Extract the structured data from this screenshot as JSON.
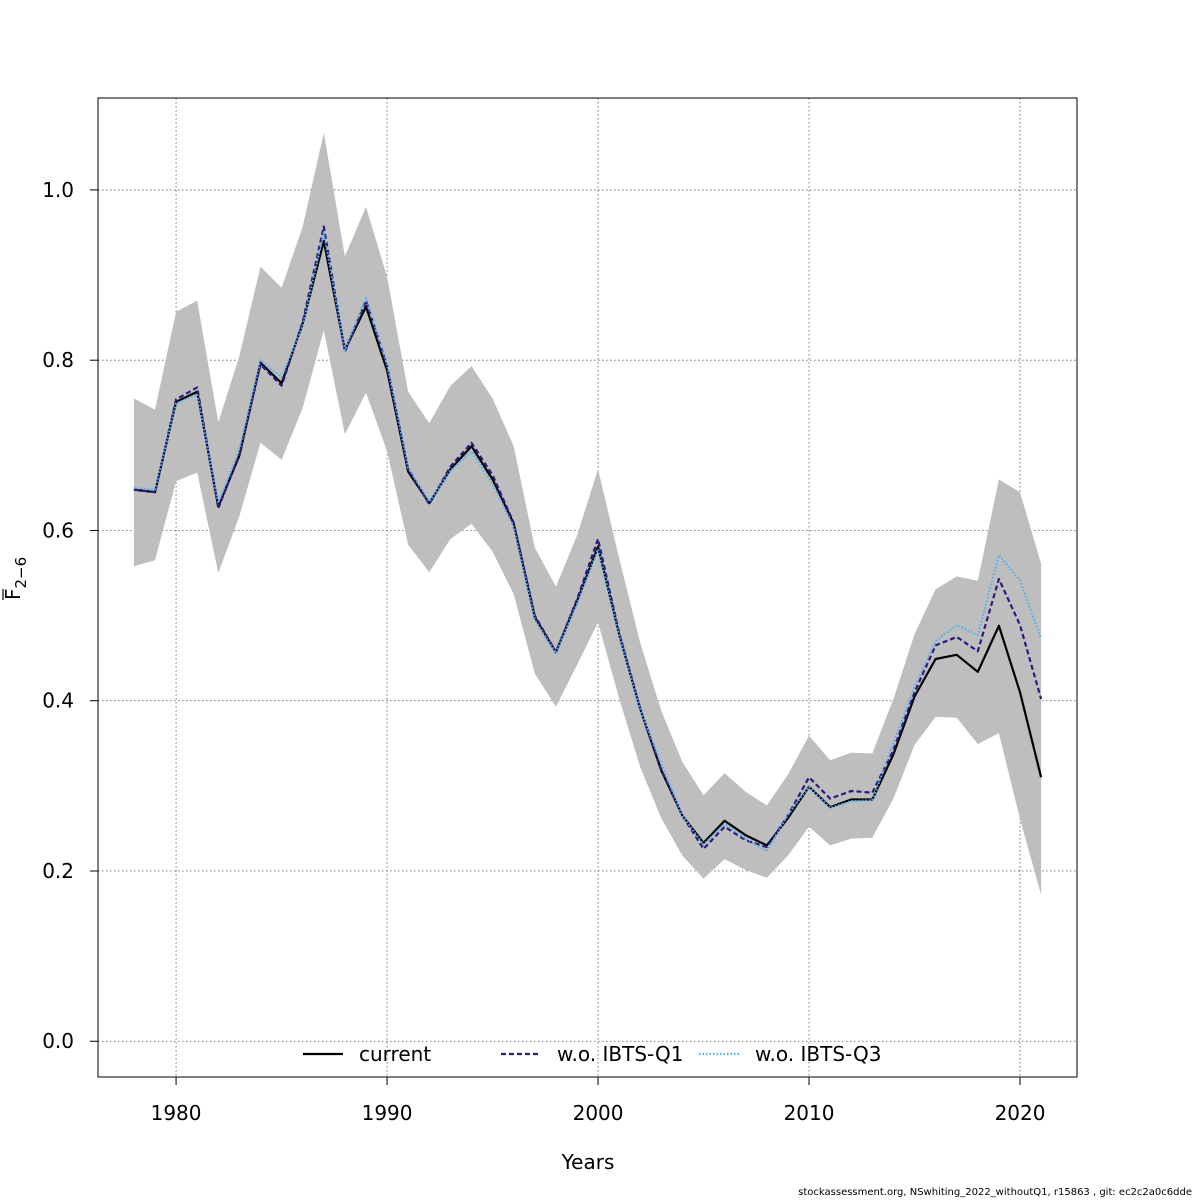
{
  "footer_text": "stockassessment.org, NSwhiting_2022_withoutQ1, r15863 , git: ec2c2a0c6dde",
  "chart_data": {
    "type": "line",
    "xlabel": "Years",
    "ylabel_main": "F",
    "ylabel_sub": "2−6",
    "xlim": [
      1976.3,
      2022.7
    ],
    "ylim": [
      -0.042,
      1.108
    ],
    "x_ticks": [
      1980,
      1990,
      2000,
      2010,
      2020
    ],
    "y_ticks": [
      0.0,
      0.2,
      0.4,
      0.6,
      0.8,
      1.0
    ],
    "y_tick_labels": [
      "0.0",
      "0.2",
      "0.4",
      "0.6",
      "0.8",
      "1.0"
    ],
    "grid": true,
    "legend_position": "bottom",
    "band_color": "#bebebe",
    "x": [
      1978,
      1979,
      1980,
      1981,
      1982,
      1983,
      1984,
      1985,
      1986,
      1987,
      1988,
      1989,
      1990,
      1991,
      1992,
      1993,
      1994,
      1995,
      1996,
      1997,
      1998,
      1999,
      2000,
      2001,
      2002,
      2003,
      2004,
      2005,
      2006,
      2007,
      2008,
      2009,
      2010,
      2011,
      2012,
      2013,
      2014,
      2015,
      2016,
      2017,
      2018,
      2019,
      2020,
      2021
    ],
    "band": {
      "upper": [
        0.755,
        0.742,
        0.857,
        0.87,
        0.727,
        0.805,
        0.91,
        0.885,
        0.957,
        1.067,
        0.922,
        0.98,
        0.898,
        0.763,
        0.726,
        0.77,
        0.793,
        0.755,
        0.699,
        0.58,
        0.534,
        0.594,
        0.672,
        0.568,
        0.468,
        0.388,
        0.328,
        0.289,
        0.315,
        0.293,
        0.277,
        0.313,
        0.359,
        0.33,
        0.339,
        0.338,
        0.402,
        0.478,
        0.531,
        0.546,
        0.541,
        0.66,
        0.645,
        0.561
      ],
      "lower": [
        0.558,
        0.565,
        0.658,
        0.668,
        0.55,
        0.617,
        0.703,
        0.683,
        0.744,
        0.835,
        0.713,
        0.762,
        0.693,
        0.583,
        0.551,
        0.59,
        0.608,
        0.575,
        0.525,
        0.432,
        0.393,
        0.442,
        0.492,
        0.403,
        0.322,
        0.262,
        0.218,
        0.191,
        0.214,
        0.201,
        0.192,
        0.218,
        0.252,
        0.23,
        0.238,
        0.239,
        0.285,
        0.348,
        0.381,
        0.38,
        0.349,
        0.362,
        0.261,
        0.172
      ]
    },
    "series": [
      {
        "name": "current",
        "color": "#000000",
        "dash": "solid",
        "values": [
          0.648,
          0.645,
          0.751,
          0.763,
          0.628,
          0.688,
          0.797,
          0.773,
          0.843,
          0.94,
          0.812,
          0.863,
          0.788,
          0.669,
          0.632,
          0.672,
          0.699,
          0.66,
          0.608,
          0.498,
          0.457,
          0.517,
          0.581,
          0.478,
          0.39,
          0.318,
          0.265,
          0.233,
          0.259,
          0.242,
          0.23,
          0.262,
          0.299,
          0.275,
          0.284,
          0.284,
          0.337,
          0.405,
          0.449,
          0.454,
          0.434,
          0.488,
          0.41,
          0.31
        ]
      },
      {
        "name": "w.o. IBTS-Q1",
        "color": "#2e1a7a",
        "dash": "dashed",
        "values": [
          0.648,
          0.645,
          0.754,
          0.768,
          0.626,
          0.69,
          0.795,
          0.77,
          0.845,
          0.957,
          0.81,
          0.87,
          0.793,
          0.672,
          0.631,
          0.675,
          0.703,
          0.665,
          0.609,
          0.5,
          0.457,
          0.519,
          0.59,
          0.48,
          0.391,
          0.319,
          0.265,
          0.226,
          0.252,
          0.236,
          0.228,
          0.265,
          0.31,
          0.285,
          0.294,
          0.292,
          0.342,
          0.41,
          0.465,
          0.475,
          0.458,
          0.543,
          0.489,
          0.402
        ]
      },
      {
        "name": "w.o. IBTS-Q3",
        "color": "#4fb0f0",
        "dash": "dotted",
        "values": [
          0.65,
          0.648,
          0.749,
          0.76,
          0.632,
          0.695,
          0.8,
          0.78,
          0.84,
          0.95,
          0.812,
          0.873,
          0.795,
          0.674,
          0.634,
          0.67,
          0.693,
          0.655,
          0.604,
          0.495,
          0.456,
          0.514,
          0.578,
          0.477,
          0.389,
          0.326,
          0.265,
          0.231,
          0.255,
          0.238,
          0.223,
          0.266,
          0.299,
          0.274,
          0.282,
          0.283,
          0.35,
          0.416,
          0.47,
          0.489,
          0.477,
          0.571,
          0.541,
          0.473
        ]
      }
    ]
  }
}
